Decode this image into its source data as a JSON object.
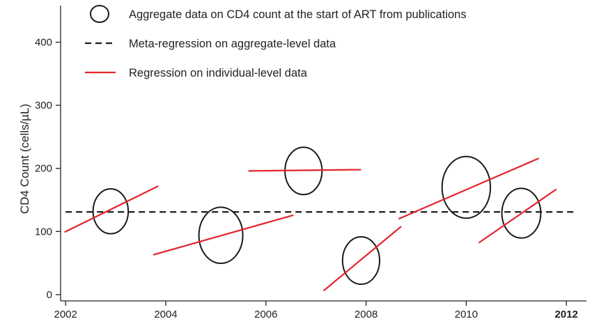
{
  "chart_data": {
    "type": "scatter",
    "ylabel": "CD4 Count (cells/µL)",
    "xlabel": "",
    "xlim": [
      2001.9,
      2012.4
    ],
    "ylim": [
      -10,
      458
    ],
    "x_ticks": [
      {
        "value": 2002,
        "label": "2002",
        "bold": false
      },
      {
        "value": 2004,
        "label": "2004",
        "bold": false
      },
      {
        "value": 2006,
        "label": "2006",
        "bold": false
      },
      {
        "value": 2008,
        "label": "2008",
        "bold": false
      },
      {
        "value": 2010,
        "label": "2010",
        "bold": false
      },
      {
        "value": 2012,
        "label": "2012",
        "bold": true
      }
    ],
    "y_ticks": [
      {
        "value": 0,
        "label": "0"
      },
      {
        "value": 100,
        "label": "100"
      },
      {
        "value": 200,
        "label": "200"
      },
      {
        "value": 300,
        "label": "300"
      },
      {
        "value": 400,
        "label": "400"
      }
    ],
    "legend": {
      "position": "top",
      "items": [
        {
          "type": "circle",
          "label": "Aggregate data on CD4 count at the start of ART from publications"
        },
        {
          "type": "dashed",
          "label": "Meta-regression on aggregate-level data"
        },
        {
          "type": "line",
          "label": "Regression on individual-level data"
        }
      ]
    },
    "colors": {
      "circle": "#1a1a1a",
      "meta": "#1a1a1a",
      "individual": "#e3242b",
      "axis": "#222222"
    },
    "aggregate_points": [
      {
        "x": 2002.9,
        "y": 132,
        "size": 0.9
      },
      {
        "x": 2005.1,
        "y": 94,
        "size": 1.4
      },
      {
        "x": 2006.75,
        "y": 196,
        "size": 1.0
      },
      {
        "x": 2007.9,
        "y": 54,
        "size": 1.0
      },
      {
        "x": 2010.0,
        "y": 170,
        "size": 1.7
      },
      {
        "x": 2011.1,
        "y": 129,
        "size": 1.1
      }
    ],
    "meta_regression": {
      "x": [
        2002.0,
        2012.2
      ],
      "y": [
        131,
        131
      ]
    },
    "individual_regressions": [
      {
        "x": [
          2001.98,
          2003.85
        ],
        "y": [
          99,
          172
        ]
      },
      {
        "x": [
          2003.75,
          2006.55
        ],
        "y": [
          63,
          126
        ]
      },
      {
        "x": [
          2005.65,
          2007.9
        ],
        "y": [
          196,
          198
        ]
      },
      {
        "x": [
          2007.15,
          2008.7
        ],
        "y": [
          6,
          108
        ]
      },
      {
        "x": [
          2008.65,
          2011.45
        ],
        "y": [
          120,
          216
        ]
      },
      {
        "x": [
          2010.25,
          2011.8
        ],
        "y": [
          82,
          167
        ]
      }
    ]
  }
}
